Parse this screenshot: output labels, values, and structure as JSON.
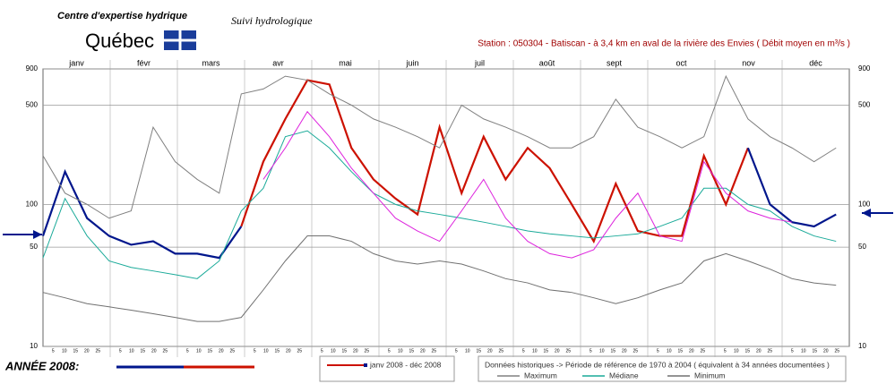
{
  "header": {
    "org": "Centre d'expertise hydrique",
    "brand": "Québec",
    "app": "Suivi hydrologique"
  },
  "chart_data": {
    "type": "line",
    "title": "Station : 050304   -   Batiscan - à 3,4 km en aval de la rivière des Envies   ( Débit moyen en m³/s )",
    "categories": [
      "janv",
      "févr",
      "mars",
      "avr",
      "mai",
      "juin",
      "juil",
      "août",
      "sept",
      "oct",
      "nov",
      "déc"
    ],
    "day_ticks": [
      5,
      10,
      15,
      20,
      25
    ],
    "x": [
      1,
      11,
      21,
      31,
      41,
      51,
      61,
      71,
      81,
      91,
      101,
      111,
      121,
      131,
      141,
      151,
      161,
      171,
      181,
      191,
      201,
      211,
      221,
      231,
      241,
      251,
      261,
      271,
      281,
      291,
      301,
      311,
      321,
      331,
      341,
      351,
      361
    ],
    "xlim": [
      1,
      367
    ],
    "ylim": [
      10,
      900
    ],
    "yticks": [
      10,
      50,
      100,
      500,
      900
    ],
    "log_scale": true,
    "grid": true,
    "series": [
      {
        "name": "janv 2008 - déc 2008",
        "color": "#cc1100",
        "values": [
          null,
          null,
          null,
          null,
          null,
          null,
          null,
          null,
          null,
          70,
          200,
          400,
          750,
          700,
          250,
          150,
          110,
          85,
          350,
          120,
          300,
          150,
          250,
          180,
          100,
          55,
          140,
          65,
          60,
          60,
          220,
          100,
          250,
          null,
          null,
          null,
          null
        ]
      },
      {
        "color": "#00168c",
        "values": [
          60,
          170,
          80,
          60,
          52,
          55,
          45,
          45,
          42,
          70,
          null,
          null,
          null,
          null,
          null,
          null,
          null,
          null,
          null,
          null,
          null,
          null,
          null,
          null,
          null,
          null,
          null,
          null,
          null,
          null,
          null,
          null,
          250,
          100,
          75,
          70,
          85
        ]
      },
      {
        "name": "Maximum",
        "color": "#808080",
        "values": [
          220,
          120,
          100,
          80,
          90,
          350,
          200,
          150,
          120,
          600,
          650,
          800,
          750,
          600,
          500,
          400,
          350,
          300,
          250,
          500,
          400,
          350,
          300,
          250,
          250,
          300,
          550,
          350,
          300,
          250,
          300,
          800,
          400,
          300,
          250,
          200,
          250
        ]
      },
      {
        "name": "Médiane",
        "color": "#1aaa99",
        "values": [
          42,
          110,
          60,
          40,
          36,
          34,
          32,
          30,
          40,
          90,
          130,
          300,
          330,
          250,
          170,
          120,
          100,
          90,
          85,
          80,
          75,
          70,
          65,
          62,
          60,
          58,
          60,
          62,
          70,
          80,
          130,
          130,
          100,
          90,
          70,
          60,
          55
        ]
      },
      {
        "name": "Minimum",
        "color": "#707070",
        "values": [
          24,
          22,
          20,
          19,
          18,
          17,
          16,
          15,
          15,
          16,
          25,
          40,
          60,
          60,
          55,
          45,
          40,
          38,
          40,
          38,
          34,
          30,
          28,
          25,
          24,
          22,
          20,
          22,
          25,
          28,
          40,
          45,
          40,
          35,
          30,
          28,
          27
        ]
      },
      {
        "color": "#dd22dd",
        "values": [
          null,
          null,
          null,
          null,
          null,
          null,
          null,
          null,
          null,
          null,
          150,
          250,
          450,
          300,
          180,
          120,
          80,
          65,
          55,
          90,
          150,
          80,
          55,
          45,
          42,
          48,
          80,
          120,
          60,
          55,
          200,
          120,
          90,
          80,
          75,
          null,
          null
        ]
      }
    ],
    "year_label": "ANNÉE  2008:",
    "history_note": "Données historiques -> Période de référence  de 1970 à 2004   ( équivalent à 34 années documentées )"
  }
}
